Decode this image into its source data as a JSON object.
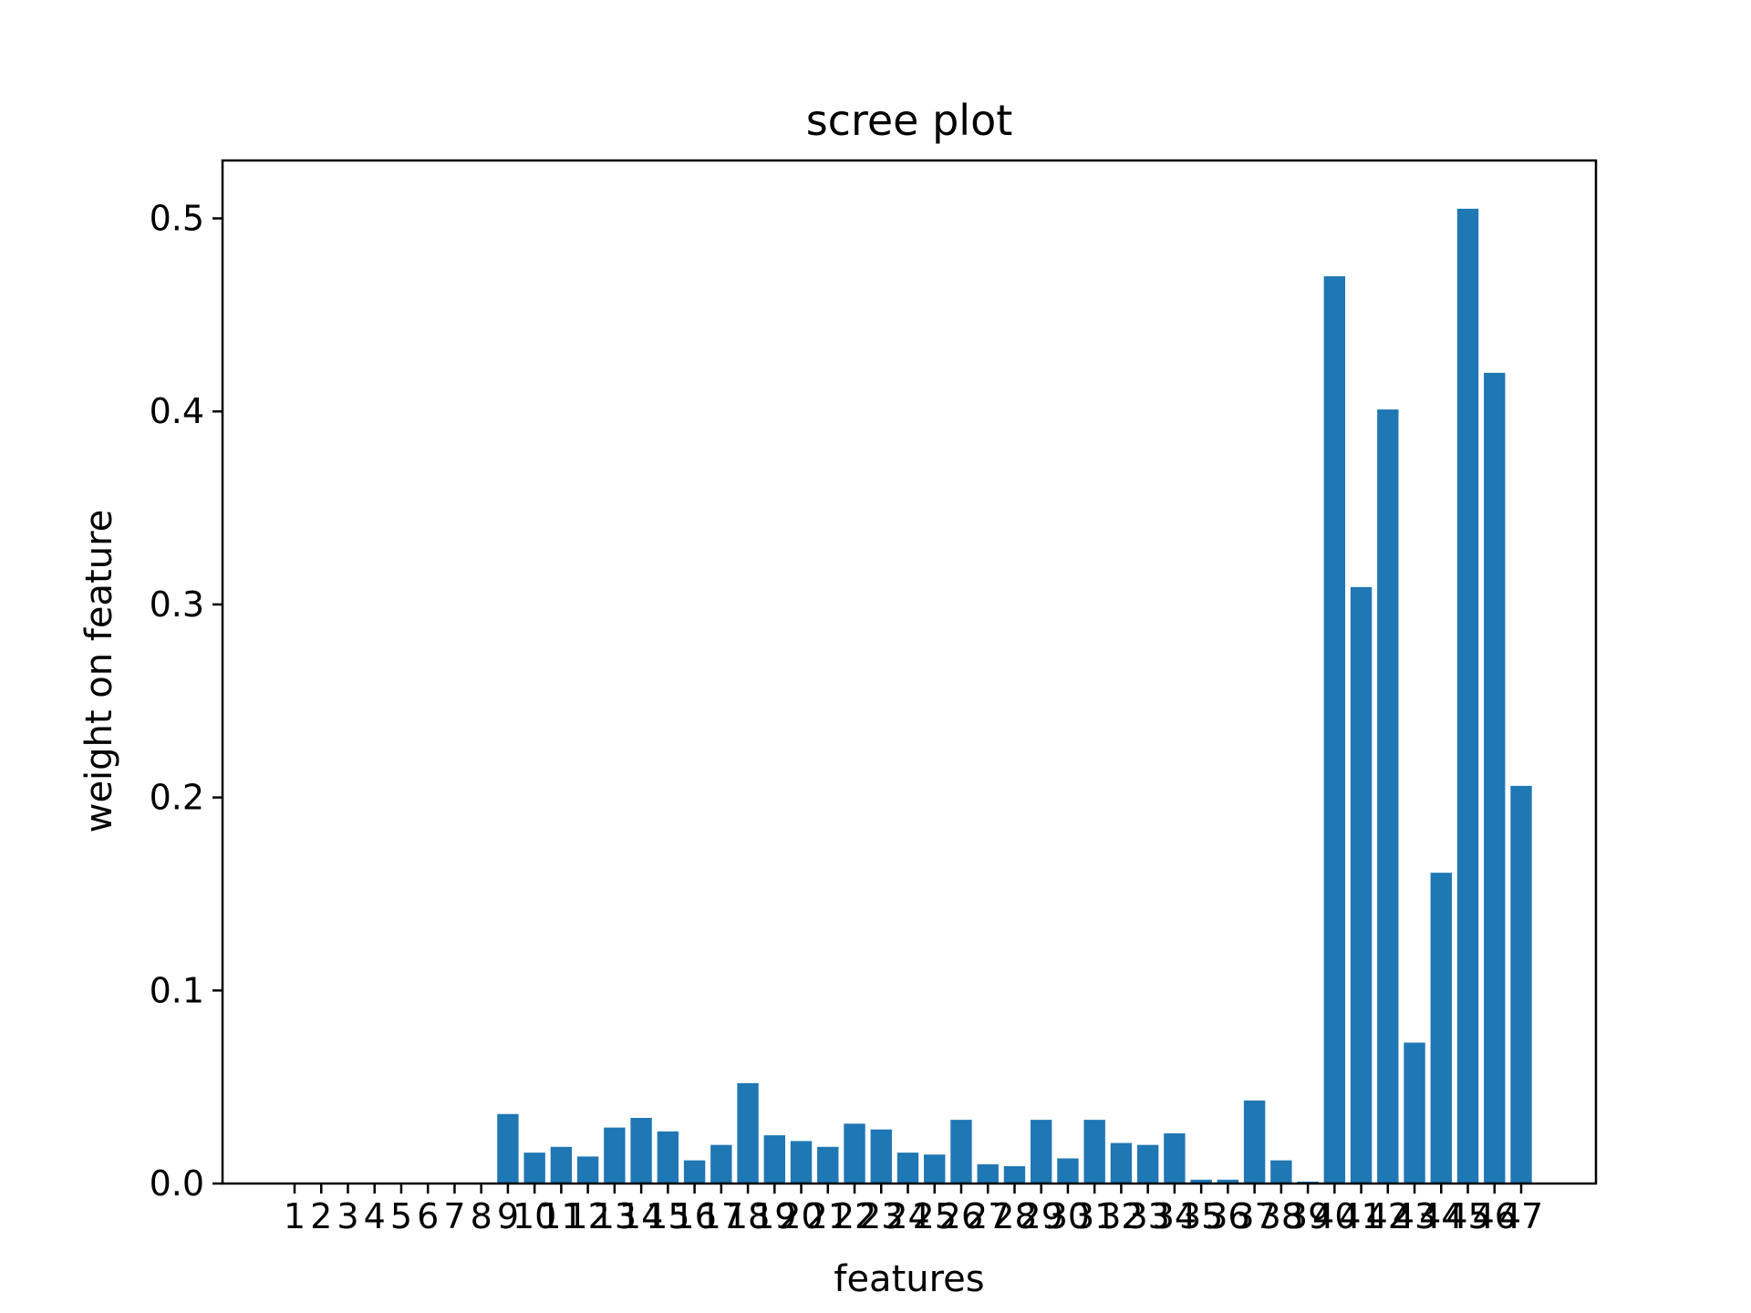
{
  "chart_data": {
    "type": "bar",
    "title": "scree plot",
    "xlabel": "features",
    "ylabel": "weight on feature",
    "categories": [
      "1",
      "2",
      "3",
      "4",
      "5",
      "6",
      "7",
      "8",
      "9",
      "10",
      "11",
      "12",
      "13",
      "14",
      "15",
      "16",
      "17",
      "18",
      "19",
      "20",
      "21",
      "22",
      "23",
      "24",
      "25",
      "26",
      "27",
      "28",
      "29",
      "30",
      "31",
      "32",
      "33",
      "34",
      "35",
      "36",
      "37",
      "38",
      "39",
      "40",
      "41",
      "42",
      "43",
      "44",
      "45",
      "46",
      "47"
    ],
    "values": [
      0.0,
      0.0,
      0.0,
      0.0,
      0.0,
      0.0,
      0.0,
      0.0,
      0.036,
      0.016,
      0.019,
      0.014,
      0.029,
      0.034,
      0.027,
      0.012,
      0.02,
      0.052,
      0.025,
      0.022,
      0.019,
      0.031,
      0.028,
      0.016,
      0.015,
      0.033,
      0.01,
      0.009,
      0.033,
      0.013,
      0.033,
      0.021,
      0.02,
      0.026,
      0.002,
      0.002,
      0.043,
      0.012,
      0.001,
      0.47,
      0.309,
      0.401,
      0.073,
      0.161,
      0.505,
      0.42,
      0.206
    ],
    "ylim": [
      0,
      0.53
    ],
    "yticks": [
      "0.0",
      "0.1",
      "0.2",
      "0.3",
      "0.4",
      "0.5"
    ],
    "bar_color": "#1f77b4",
    "grid": false
  }
}
